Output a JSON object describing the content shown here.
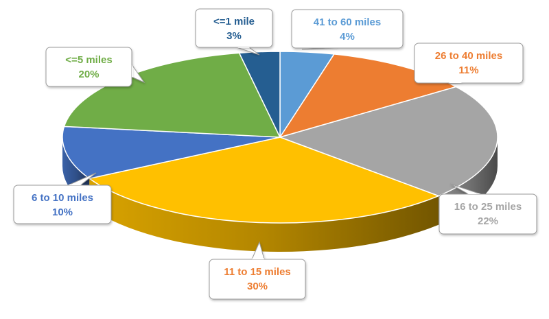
{
  "chart_data": {
    "type": "pie",
    "title": "",
    "slices": [
      {
        "label": "41 to 60 miles",
        "value": 4,
        "value_label": "4%",
        "color": "#5b9bd5",
        "label_color": "#5b9bd5"
      },
      {
        "label": "26 to 40 miles",
        "value": 11,
        "value_label": "11%",
        "color": "#ed7d31",
        "label_color": "#ed7d31"
      },
      {
        "label": "16 to 25 miles",
        "value": 22,
        "value_label": "22%",
        "color": "#a5a5a5",
        "label_color": "#a5a5a5"
      },
      {
        "label": "11 to 15 miles",
        "value": 30,
        "value_label": "30%",
        "color": "#ffc000",
        "label_color": "#ed7d31"
      },
      {
        "label": "6 to 10 miles",
        "value": 10,
        "value_label": "10%",
        "color": "#4472c4",
        "label_color": "#4472c4"
      },
      {
        "label": "<=5 miles",
        "value": 20,
        "value_label": "20%",
        "color": "#70ad47",
        "label_color": "#70ad47"
      },
      {
        "label": "<=1 mile",
        "value": 3,
        "value_label": "3%",
        "color": "#255e91",
        "label_color": "#255e91"
      }
    ],
    "style": "3d-exploded-none",
    "legend": "none"
  }
}
